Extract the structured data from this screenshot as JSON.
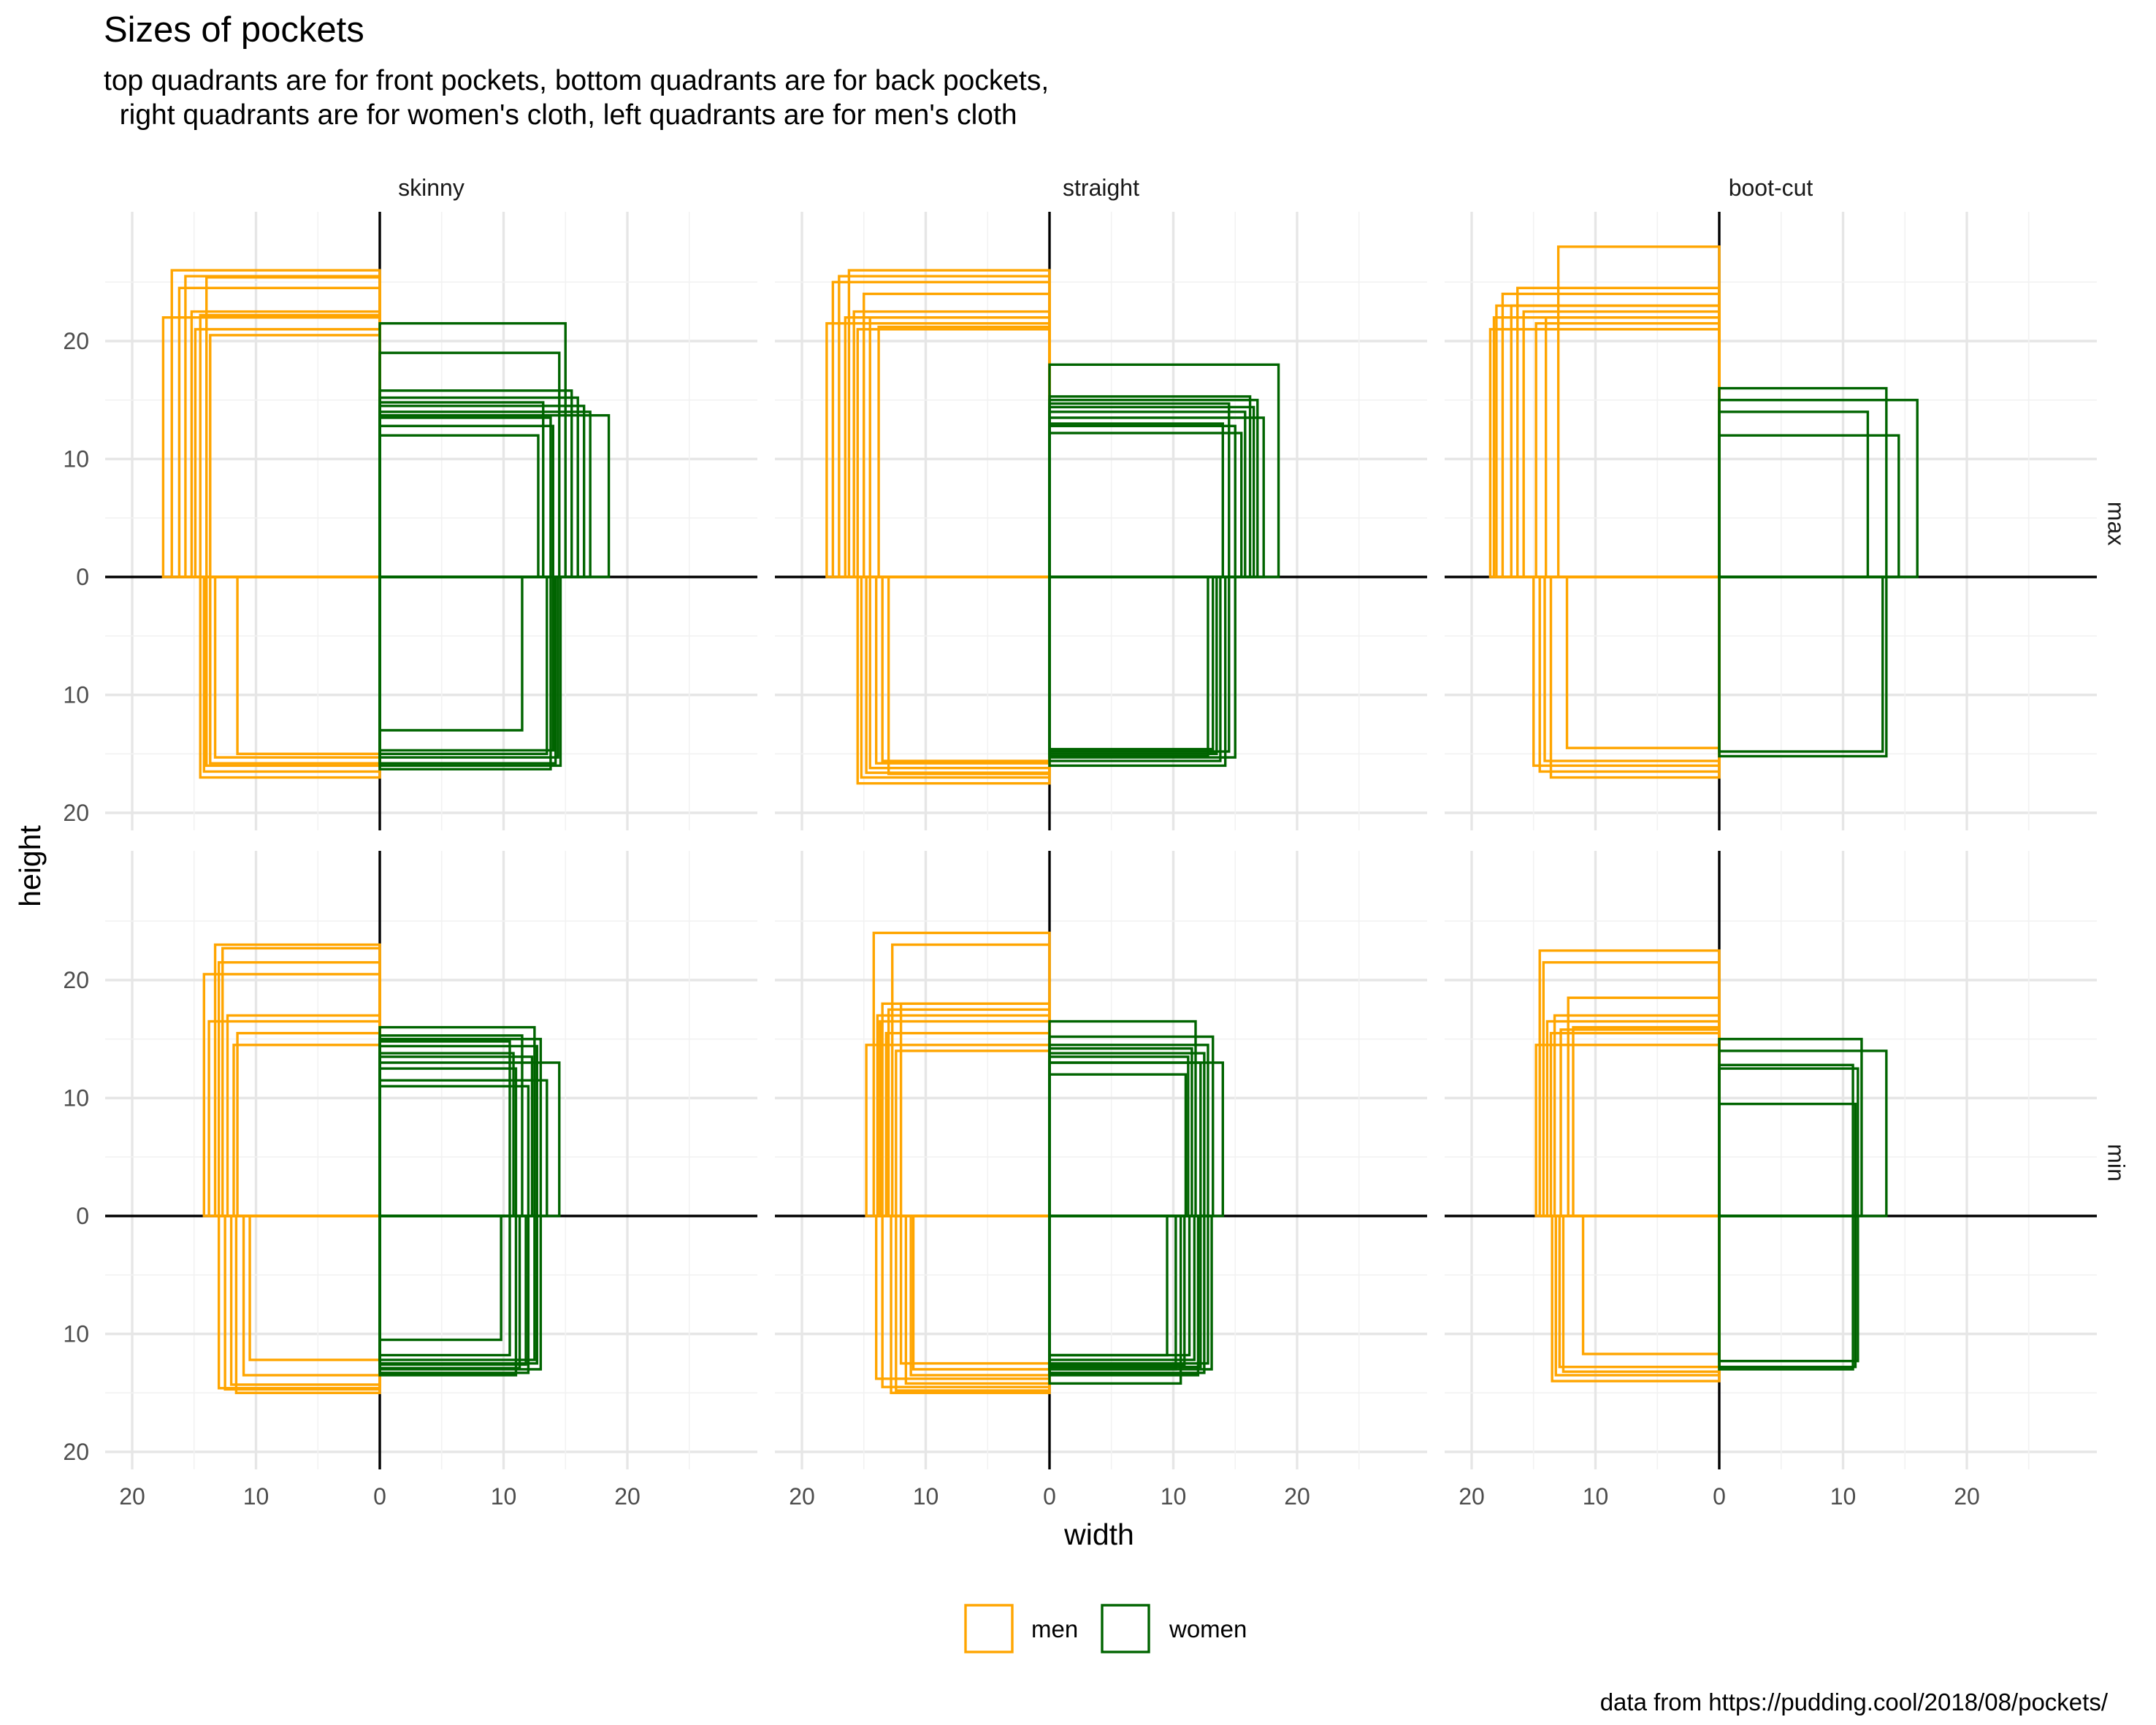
{
  "title": "Sizes of pockets",
  "subtitle": "top quadrants are for front pockets, bottom quadrants are for back pockets,\n  right quadrants are for women's cloth, left quadrants are for men's cloth",
  "caption": "data from https://pudding.cool/2018/08/pockets/",
  "colors": {
    "men": "#FFA500",
    "women": "#006400"
  },
  "chart_data": {
    "type": "rectangles",
    "xlabel": "width",
    "ylabel": "height",
    "xlim": [
      -23,
      30
    ],
    "ylim": [
      -24,
      30
    ],
    "x_ticks": [
      20,
      10,
      0,
      10,
      20
    ],
    "y_ticks": [
      20,
      10,
      0,
      10,
      20
    ],
    "columns": [
      "skinny",
      "straight",
      "boot-cut"
    ],
    "rows": [
      "max",
      "min"
    ],
    "legend": [
      {
        "key": "men",
        "label": "men"
      },
      {
        "key": "women",
        "label": "women"
      }
    ],
    "panels": {
      "max": {
        "skinny": {
          "men_front": [
            [
              17.5,
              22
            ],
            [
              16.8,
              26
            ],
            [
              16.2,
              24.5
            ],
            [
              15.7,
              25.5
            ],
            [
              15.2,
              22.5
            ],
            [
              14.9,
              21
            ],
            [
              14.5,
              22.2
            ],
            [
              14,
              25.4
            ],
            [
              13.7,
              20.5
            ]
          ],
          "men_back": [
            [
              14.5,
              17
            ],
            [
              14.2,
              16.5
            ],
            [
              14,
              16
            ],
            [
              13.7,
              15.8
            ],
            [
              13.3,
              15.3
            ],
            [
              11.5,
              15
            ]
          ],
          "women_front": [
            [
              18.5,
              13.7
            ],
            [
              17,
              14
            ],
            [
              16.5,
              14.5
            ],
            [
              16,
              15.2
            ],
            [
              15.5,
              15.8
            ],
            [
              15,
              21.5
            ],
            [
              14.5,
              19
            ],
            [
              14,
              12.8
            ],
            [
              13.8,
              13.5
            ],
            [
              13.2,
              14.8
            ],
            [
              12.8,
              12
            ]
          ],
          "women_back": [
            [
              14.6,
              16
            ],
            [
              14.4,
              15.3
            ],
            [
              14.2,
              15.8
            ],
            [
              14,
              14.7
            ],
            [
              13.8,
              16.3
            ],
            [
              13.5,
              15
            ],
            [
              11.5,
              13
            ]
          ]
        },
        "straight": {
          "men_front": [
            [
              18,
              21.5
            ],
            [
              17.5,
              25
            ],
            [
              17,
              25.5
            ],
            [
              16.5,
              22
            ],
            [
              16.2,
              26
            ],
            [
              15.8,
              22.5
            ],
            [
              15.5,
              21
            ],
            [
              15,
              24
            ],
            [
              14.5,
              22
            ],
            [
              13.8,
              21.2
            ]
          ],
          "men_back": [
            [
              15.5,
              17.5
            ],
            [
              15.2,
              17
            ],
            [
              14.8,
              16.6
            ],
            [
              14.5,
              16.2
            ],
            [
              14,
              15.8
            ],
            [
              13.5,
              15.6
            ],
            [
              13,
              16.7
            ]
          ],
          "women_front": [
            [
              18.5,
              18
            ],
            [
              17.3,
              13.5
            ],
            [
              16.8,
              15
            ],
            [
              16.5,
              14.4
            ],
            [
              16.2,
              15.3
            ],
            [
              15.8,
              14
            ],
            [
              15.5,
              12.2
            ],
            [
              15,
              12.8
            ],
            [
              14.5,
              14.7
            ],
            [
              14,
              13
            ]
          ],
          "women_back": [
            [
              15,
              15.3
            ],
            [
              14.5,
              14.8
            ],
            [
              14.2,
              16
            ],
            [
              13.8,
              15.6
            ],
            [
              13.5,
              15
            ],
            [
              13.2,
              14.6
            ],
            [
              12.8,
              15.2
            ]
          ]
        },
        "boot-cut": {
          "men_front": [
            [
              18.5,
              21
            ],
            [
              18.2,
              22
            ],
            [
              18,
              23
            ],
            [
              17.5,
              24
            ],
            [
              16.8,
              23
            ],
            [
              16.3,
              24.5
            ],
            [
              15.8,
              22.5
            ],
            [
              14.8,
              21.5
            ],
            [
              14,
              22
            ],
            [
              13,
              28
            ]
          ],
          "men_back": [
            [
              15,
              16
            ],
            [
              14.5,
              16.5
            ],
            [
              14.1,
              15.6
            ],
            [
              13.6,
              17
            ],
            [
              12.3,
              14.5
            ]
          ],
          "women_front": [
            [
              16,
              15
            ],
            [
              14.5,
              12
            ],
            [
              13.5,
              16
            ],
            [
              12,
              14
            ]
          ],
          "women_back": [
            [
              13.5,
              15.2
            ],
            [
              13.2,
              14.8
            ]
          ]
        }
      },
      "min": {
        "skinny": {
          "men_front": [
            [
              14.2,
              20.5
            ],
            [
              13.8,
              16.5
            ],
            [
              13.3,
              23
            ],
            [
              13,
              21.5
            ],
            [
              12.7,
              22.7
            ],
            [
              12.3,
              17
            ],
            [
              11.8,
              14.5
            ],
            [
              11.5,
              15.5
            ]
          ],
          "men_back": [
            [
              13,
              14.6
            ],
            [
              12.5,
              14.7
            ],
            [
              12,
              14.3
            ],
            [
              11.6,
              15
            ],
            [
              11,
              13.5
            ],
            [
              10.5,
              12.2
            ]
          ],
          "women_front": [
            [
              14.5,
              13
            ],
            [
              13.5,
              11.5
            ],
            [
              13,
              15
            ],
            [
              12.7,
              14.4
            ],
            [
              12.5,
              16
            ],
            [
              12.3,
              13.5
            ],
            [
              12,
              11
            ],
            [
              11.5,
              15.3
            ],
            [
              11,
              12.5
            ],
            [
              10.8,
              13.8
            ],
            [
              10.5,
              14.8
            ]
          ],
          "women_back": [
            [
              13,
              13
            ],
            [
              12.7,
              12.5
            ],
            [
              12.5,
              12.2
            ],
            [
              12,
              13.3
            ],
            [
              11.8,
              12.6
            ],
            [
              11.3,
              12.9
            ],
            [
              11,
              13.5
            ],
            [
              10.5,
              11.8
            ],
            [
              9.8,
              10.5
            ]
          ]
        },
        "straight": {
          "men_front": [
            [
              14.8,
              14.5
            ],
            [
              14.2,
              24
            ],
            [
              13.9,
              17
            ],
            [
              13.7,
              16.5
            ],
            [
              13.5,
              18
            ],
            [
              13.2,
              15.5
            ],
            [
              13,
              17.5
            ],
            [
              12.7,
              23
            ],
            [
              12.4,
              14
            ],
            [
              12,
              18
            ]
          ],
          "men_back": [
            [
              14,
              13.8
            ],
            [
              13.5,
              14.5
            ],
            [
              12.8,
              15
            ],
            [
              12.4,
              14.8
            ],
            [
              12,
              12.5
            ],
            [
              11.6,
              14.2
            ],
            [
              11.2,
              13.5
            ],
            [
              11,
              13
            ]
          ],
          "women_front": [
            [
              14,
              13
            ],
            [
              13.2,
              15.2
            ],
            [
              12.8,
              14.5
            ],
            [
              12.5,
              13.8
            ],
            [
              12.2,
              13
            ],
            [
              11.8,
              16.5
            ],
            [
              11.5,
              14.2
            ],
            [
              11.2,
              13.5
            ],
            [
              11,
              12
            ]
          ],
          "women_back": [
            [
              13.1,
              13
            ],
            [
              12.8,
              12.5
            ],
            [
              12.5,
              13.3
            ],
            [
              12.2,
              12.8
            ],
            [
              12,
              13.5
            ],
            [
              11.7,
              12.2
            ],
            [
              11.3,
              11.8
            ],
            [
              10.9,
              12.6
            ],
            [
              10.6,
              14.2
            ],
            [
              10.2,
              13
            ],
            [
              9.5,
              11.8
            ]
          ]
        },
        "boot-cut": {
          "men_front": [
            [
              14.8,
              14.5
            ],
            [
              14.5,
              22.5
            ],
            [
              14.2,
              21.5
            ],
            [
              13.9,
              16.5
            ],
            [
              13.6,
              15.5
            ],
            [
              13.3,
              17
            ],
            [
              12.8,
              15.8
            ],
            [
              12.2,
              18.5
            ],
            [
              11.8,
              16
            ]
          ],
          "men_back": [
            [
              13.5,
              14
            ],
            [
              13.2,
              13.5
            ],
            [
              12.9,
              12.8
            ],
            [
              12.6,
              13.2
            ],
            [
              11,
              11.7
            ]
          ],
          "women_front": [
            [
              13.5,
              14
            ],
            [
              11.5,
              15
            ],
            [
              11.2,
              12.5
            ],
            [
              11,
              9.5
            ],
            [
              10.8,
              12.8
            ]
          ],
          "women_back": [
            [
              11.2,
              12.3
            ],
            [
              11,
              12.8
            ],
            [
              10.8,
              13
            ]
          ]
        }
      }
    }
  }
}
